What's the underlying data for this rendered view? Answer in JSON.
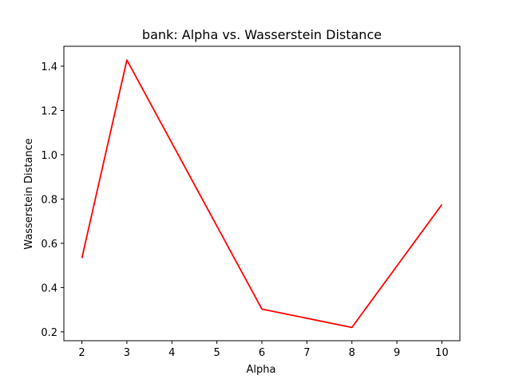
{
  "chart_data": {
    "type": "line",
    "title": "bank: Alpha vs. Wasserstein Distance",
    "xlabel": "Alpha",
    "ylabel": "Wasserstein Distance",
    "x": [
      2,
      3,
      6,
      8,
      10
    ],
    "series": [
      {
        "values": [
          0.533,
          1.428,
          0.303,
          0.22,
          0.775
        ],
        "color": "#ff0000"
      }
    ],
    "xlim": [
      1.6,
      10.4
    ],
    "ylim": [
      0.16,
      1.49
    ],
    "xticks": [
      2,
      3,
      4,
      5,
      6,
      7,
      8,
      9,
      10
    ],
    "xtick_labels": [
      "2",
      "3",
      "4",
      "5",
      "6",
      "7",
      "8",
      "9",
      "10"
    ],
    "yticks": [
      0.2,
      0.4,
      0.6,
      0.8,
      1.0,
      1.2,
      1.4
    ],
    "ytick_labels": [
      "0.2",
      "0.4",
      "0.6",
      "0.8",
      "1.0",
      "1.2",
      "1.4"
    ],
    "grid": false,
    "legend": false
  }
}
